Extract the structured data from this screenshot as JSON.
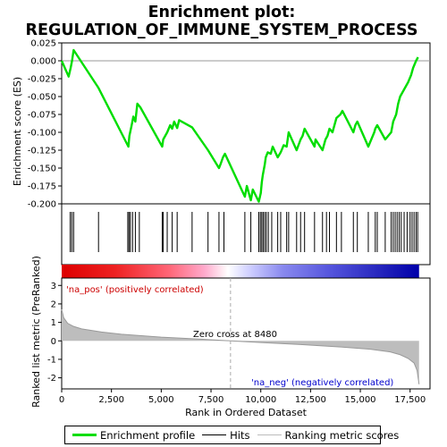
{
  "title": "Enrichment plot: REGULATION_OF_IMMUNE_SYSTEM_PROCESS",
  "colors": {
    "enrichment_line": "#00dd00",
    "hits": "#000000",
    "metric_line": "#bbbbbb",
    "metric_fill": "#bdbdbd",
    "pos_label": "#cc0000",
    "neg_label": "#0000cc",
    "zero_line": "#aaaaaa"
  },
  "legend": {
    "enrichment_profile": "Enrichment profile",
    "hits": "Hits",
    "ranking_metric": "Ranking metric scores"
  },
  "annotations": {
    "pos": "'na_pos' (positively correlated)",
    "neg": "'na_neg' (negatively correlated)",
    "zero_cross": "Zero cross at 8480"
  },
  "chart_data": [
    {
      "type": "line",
      "title": "Enrichment plot: REGULATION_OF_IMMUNE_SYSTEM_PROCESS",
      "xlabel": "",
      "ylabel": "Enrichment score (ES)",
      "xlim": [
        0,
        18500
      ],
      "ylim": [
        -0.2,
        0.025
      ],
      "yticks": [
        0.025,
        0.0,
        -0.025,
        -0.05,
        -0.075,
        -0.1,
        -0.125,
        -0.15,
        -0.175,
        -0.2
      ],
      "ytick_labels": [
        "0.025",
        "0.000",
        "-0.025",
        "-0.050",
        "-0.075",
        "-0.100",
        "-0.125",
        "-0.150",
        "-0.175",
        "-0.200"
      ],
      "series": [
        {
          "name": "Enrichment profile",
          "x": [
            0,
            350,
            450,
            520,
            600,
            1850,
            3350,
            3400,
            3500,
            3600,
            3700,
            3800,
            3950,
            5050,
            5100,
            5300,
            5450,
            5550,
            5650,
            5800,
            5900,
            6550,
            7350,
            7900,
            8000,
            8100,
            8200,
            9200,
            9300,
            9500,
            9600,
            9900,
            10000,
            10050,
            10100,
            10200,
            10250,
            10350,
            10500,
            10600,
            10850,
            11000,
            11150,
            11300,
            11400,
            11800,
            12000,
            12100,
            12200,
            12700,
            12750,
            13100,
            13250,
            13350,
            13450,
            13600,
            13800,
            14000,
            14100,
            14650,
            14750,
            14850,
            15400,
            15700,
            15750,
            15850,
            16250,
            16550,
            16650,
            16800,
            16900,
            17000,
            17200,
            17400,
            17550,
            17650,
            17800,
            17900
          ],
          "y": [
            0.0,
            -0.022,
            -0.01,
            0.0,
            0.015,
            -0.038,
            -0.12,
            -0.105,
            -0.092,
            -0.078,
            -0.085,
            -0.06,
            -0.065,
            -0.12,
            -0.11,
            -0.1,
            -0.09,
            -0.095,
            -0.085,
            -0.094,
            -0.083,
            -0.093,
            -0.125,
            -0.15,
            -0.143,
            -0.135,
            -0.13,
            -0.19,
            -0.175,
            -0.195,
            -0.18,
            -0.197,
            -0.185,
            -0.17,
            -0.16,
            -0.145,
            -0.135,
            -0.128,
            -0.13,
            -0.12,
            -0.135,
            -0.128,
            -0.118,
            -0.12,
            -0.1,
            -0.125,
            -0.11,
            -0.105,
            -0.095,
            -0.12,
            -0.11,
            -0.125,
            -0.11,
            -0.105,
            -0.095,
            -0.1,
            -0.08,
            -0.075,
            -0.07,
            -0.1,
            -0.09,
            -0.085,
            -0.12,
            -0.1,
            -0.095,
            -0.09,
            -0.11,
            -0.1,
            -0.085,
            -0.075,
            -0.06,
            -0.05,
            -0.04,
            -0.03,
            -0.02,
            -0.01,
            0.0,
            0.005
          ]
        }
      ],
      "hits": [
        430,
        510,
        600,
        1850,
        3320,
        3380,
        3450,
        3560,
        3700,
        3900,
        5050,
        5100,
        5300,
        5550,
        5800,
        6550,
        7350,
        7900,
        8150,
        9200,
        9500,
        9900,
        9980,
        10050,
        10120,
        10200,
        10280,
        10380,
        10550,
        10850,
        11000,
        11300,
        11400,
        11800,
        12000,
        12200,
        12700,
        13100,
        13300,
        13450,
        13800,
        14050,
        14650,
        14850,
        15400,
        15750,
        15850,
        16250,
        16550,
        16650,
        16750,
        16850,
        16950,
        17050,
        17200,
        17350,
        17500,
        17600,
        17700,
        17800,
        17880
      ]
    },
    {
      "type": "area",
      "xlabel": "Rank in Ordered Dataset",
      "ylabel": "Ranked list metric (PreRanked)",
      "xlim": [
        0,
        18500
      ],
      "ylim": [
        -2.6,
        3.4
      ],
      "xticks": [
        0,
        2500,
        5000,
        7500,
        10000,
        12500,
        15000,
        17500
      ],
      "xtick_labels": [
        "0",
        "2,500",
        "5,000",
        "7,500",
        "10,000",
        "12,500",
        "15,000",
        "17,500"
      ],
      "yticks": [
        3,
        2,
        1,
        0,
        -1,
        -2
      ],
      "ytick_labels": [
        "3",
        "2",
        "1",
        "0",
        "-1",
        "-2"
      ],
      "zero_cross": 8480,
      "series": [
        {
          "name": "Ranking metric scores",
          "x": [
            0,
            100,
            300,
            600,
            1000,
            2000,
            3000,
            5000,
            7000,
            8480,
            10000,
            12000,
            14000,
            15500,
            16500,
            17000,
            17400,
            17700,
            17850,
            17950
          ],
          "y": [
            1.7,
            1.25,
            0.95,
            0.78,
            0.65,
            0.48,
            0.36,
            0.2,
            0.09,
            0.0,
            -0.09,
            -0.2,
            -0.33,
            -0.45,
            -0.6,
            -0.75,
            -0.95,
            -1.2,
            -1.6,
            -2.35
          ]
        }
      ]
    }
  ]
}
